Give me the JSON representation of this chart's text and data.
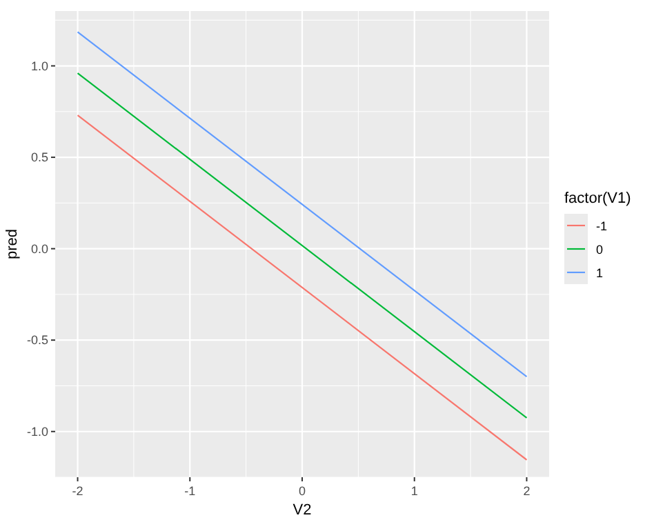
{
  "chart_data": {
    "type": "line",
    "xlabel": "V2",
    "ylabel": "pred",
    "legend_title": "factor(V1)",
    "legend": "right",
    "grid": true,
    "marker": "none",
    "line_style": "solid",
    "xlim": [
      -2.2,
      2.2
    ],
    "xticks": [
      -2,
      {
        "value": -1.5,
        "label": null
      },
      -1,
      {
        "value": -0.5,
        "label": null
      },
      0,
      {
        "value": 0.5,
        "label": null
      },
      1,
      {
        "value": 1.5,
        "label": null
      },
      2
    ],
    "ylim": [
      -1.25,
      1.3
    ],
    "yticks": [
      {
        "value": -1.25,
        "label": null
      },
      {
        "value": -1,
        "label": "-1.0"
      },
      {
        "value": -0.75,
        "label": null
      },
      -0.5,
      {
        "value": -0.25,
        "label": null
      },
      {
        "value": 0,
        "label": "0.0"
      },
      {
        "value": 0.25,
        "label": null
      },
      0.5,
      {
        "value": 0.75,
        "label": null
      },
      {
        "value": 1,
        "label": "1.0"
      },
      {
        "value": 1.25,
        "label": null
      }
    ],
    "x": [
      -2,
      2
    ],
    "series": [
      {
        "name": "-1",
        "color": "#f8766d",
        "values": [
          0.73,
          -1.155
        ]
      },
      {
        "name": "0",
        "color": "#00ba38",
        "values": [
          0.96,
          -0.925
        ]
      },
      {
        "name": "1",
        "color": "#619cff",
        "values": [
          1.185,
          -0.7
        ]
      }
    ]
  }
}
